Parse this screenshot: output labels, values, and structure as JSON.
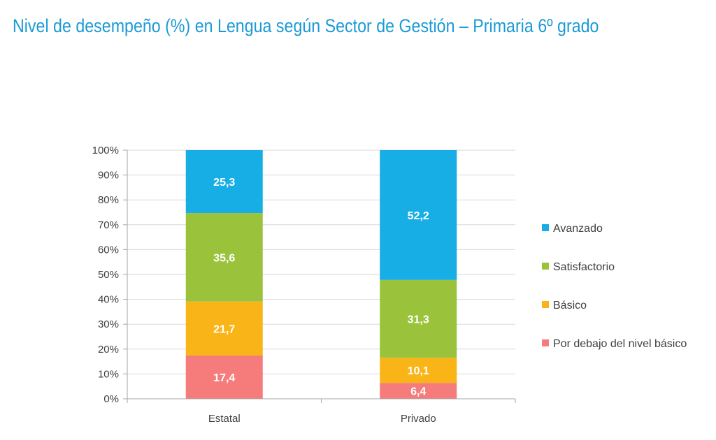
{
  "colors": {
    "title": "#1a9ad6",
    "grid": "#d9d9d9",
    "axis": "#a6a6a6"
  },
  "chart_data": {
    "type": "bar",
    "stacked": true,
    "title": "Nivel de desempeño (%) en Lengua según Sector de Gestión – Primaria 6º grado",
    "categories": [
      "Estatal",
      "Privado"
    ],
    "series": [
      {
        "name": "Por debajo del nivel básico",
        "values": [
          17.4,
          6.4
        ],
        "labels": [
          "17,4",
          "6,4"
        ],
        "color": "#f67b7b"
      },
      {
        "name": "Básico",
        "values": [
          21.7,
          10.1
        ],
        "labels": [
          "21,7",
          "10,1"
        ],
        "color": "#f9b418"
      },
      {
        "name": "Satisfactorio",
        "values": [
          35.6,
          31.3
        ],
        "labels": [
          "35,6",
          "31,3"
        ],
        "color": "#9ac33b"
      },
      {
        "name": "Avanzado",
        "values": [
          25.3,
          52.2
        ],
        "labels": [
          "25,3",
          "52,2"
        ],
        "color": "#17aee6"
      }
    ],
    "yticks": [
      "0%",
      "10%",
      "20%",
      "30%",
      "40%",
      "50%",
      "60%",
      "70%",
      "80%",
      "90%",
      "100%"
    ],
    "ylim": [
      0,
      100
    ],
    "grid": true,
    "legend_position": "right",
    "legend_order": [
      "Avanzado",
      "Satisfactorio",
      "Básico",
      "Por debajo del nivel básico"
    ]
  }
}
